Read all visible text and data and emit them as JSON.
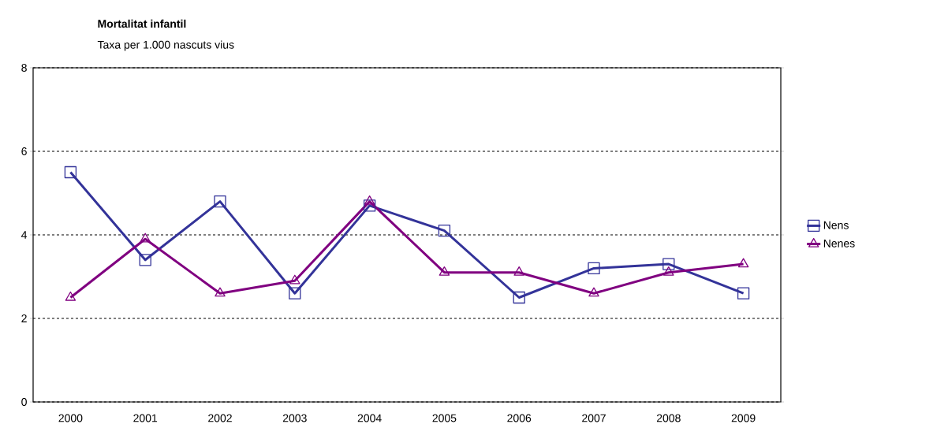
{
  "chart_data": {
    "type": "line",
    "title": "Mortalitat infantil",
    "subtitle": "Taxa per 1.000 nascuts vius",
    "categories": [
      "2000",
      "2001",
      "2002",
      "2003",
      "2004",
      "2005",
      "2006",
      "2007",
      "2008",
      "2009"
    ],
    "series": [
      {
        "name": "Nens",
        "color": "#333399",
        "marker": "square",
        "values": [
          5.5,
          3.4,
          4.8,
          2.6,
          4.7,
          4.1,
          2.5,
          3.2,
          3.3,
          2.6
        ]
      },
      {
        "name": "Nenes",
        "color": "#800080",
        "marker": "triangle",
        "values": [
          2.5,
          3.9,
          2.6,
          2.9,
          4.8,
          3.1,
          3.1,
          2.6,
          3.1,
          3.3
        ]
      }
    ],
    "ylim": [
      0,
      8
    ],
    "yticks": [
      0,
      2,
      4,
      6,
      8
    ],
    "grid": "y",
    "legend": "right",
    "line_style": "solid"
  }
}
